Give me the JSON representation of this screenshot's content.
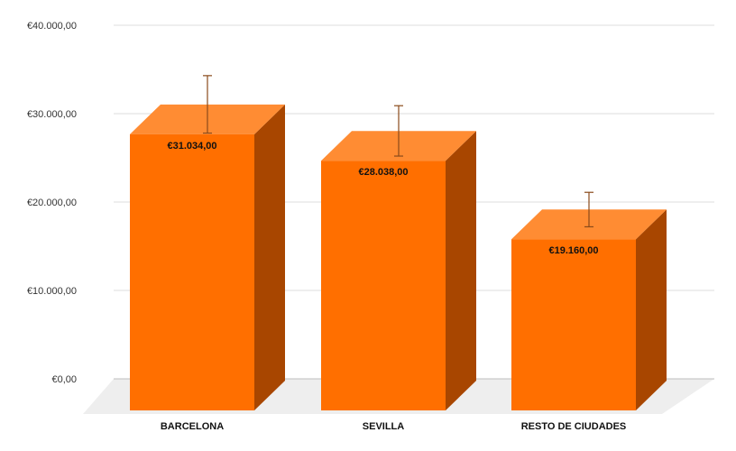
{
  "chart_data": {
    "type": "bar",
    "style": "3d",
    "categories": [
      "BARCELONA",
      "SEVILLA",
      "RESTO DE CIUDADES"
    ],
    "values": [
      31034,
      28038,
      19160
    ],
    "data_labels": [
      "€31.034,00",
      "€28.038,00",
      "€19.160,00"
    ],
    "error_bars": [
      {
        "low": 27800,
        "high": 34300
      },
      {
        "low": 25200,
        "high": 30900
      },
      {
        "low": 17200,
        "high": 21100
      }
    ],
    "ylim": [
      0,
      40000
    ],
    "yticks": [
      0,
      10000,
      20000,
      30000,
      40000
    ],
    "ytick_labels": [
      "€0,00",
      "€10.000,00",
      "€20.000,00",
      "€30.000,00",
      "€40.000,00"
    ],
    "grid": true,
    "legend": "none",
    "title": "",
    "xlabel": "",
    "ylabel": "",
    "colors": {
      "bar_front": "#FF6F00",
      "bar_top": "#FF8C33",
      "bar_side": "#A84600",
      "floor": "#EEEEEE",
      "grid": "#DDDDDD",
      "error_bar": "#8A4A1A"
    }
  }
}
